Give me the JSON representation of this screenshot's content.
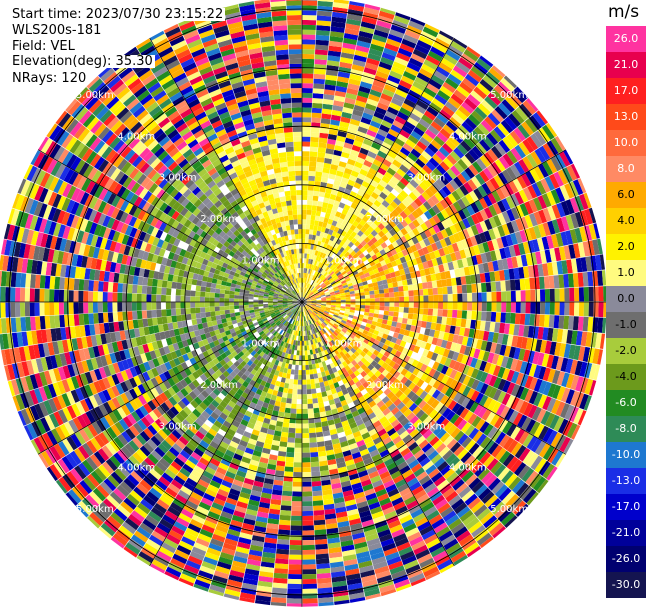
{
  "header": {
    "start_time": "Start time: 2023/07/30 23:15:22",
    "instrument": "WLS200s-181",
    "field": "Field: VEL",
    "elevation": "Elevation(deg): 35.30",
    "nrays": "NRays: 120"
  },
  "colorbar": {
    "unit": "m/s",
    "bins": [
      {
        "label": "26.0",
        "color": "#ff33a0"
      },
      {
        "label": "21.0",
        "color": "#e8004e"
      },
      {
        "label": "17.0",
        "color": "#ff2020"
      },
      {
        "label": "13.0",
        "color": "#ff4a1a"
      },
      {
        "label": "10.0",
        "color": "#ff6a3c"
      },
      {
        "label": "8.0",
        "color": "#ff8a64"
      },
      {
        "label": "6.0",
        "color": "#ffaa00"
      },
      {
        "label": "4.0",
        "color": "#ffd000"
      },
      {
        "label": "2.0",
        "color": "#fff200"
      },
      {
        "label": "1.0",
        "color": "#fffb80"
      },
      {
        "label": "0.0",
        "color": "#8a8a9a"
      },
      {
        "label": "-1.0",
        "color": "#6e6e6e"
      },
      {
        "label": "-2.0",
        "color": "#a8cc3c"
      },
      {
        "label": "-4.0",
        "color": "#6c9a1c"
      },
      {
        "label": "-6.0",
        "color": "#228b22"
      },
      {
        "label": "-8.0",
        "color": "#2e8b57"
      },
      {
        "label": "-10.0",
        "color": "#1e78d0"
      },
      {
        "label": "-13.0",
        "color": "#1a2ee6"
      },
      {
        "label": "-17.0",
        "color": "#0000cc"
      },
      {
        "label": "-21.0",
        "color": "#00009a"
      },
      {
        "label": "-26.0",
        "color": "#000070"
      },
      {
        "label": "-30.0",
        "color": "#141450"
      }
    ]
  },
  "chart_data": {
    "type": "heatmap",
    "projection": "polar PPI",
    "field": "VEL",
    "units": "m/s",
    "n_rays": 120,
    "elevation_deg": 35.3,
    "range_rings_km": [
      {
        "label": "1.00km",
        "r_km": 1.0
      },
      {
        "label": "2.00km",
        "r_km": 2.0
      },
      {
        "label": "3.00km",
        "r_km": 3.0
      },
      {
        "label": "4.00km",
        "r_km": 4.0
      },
      {
        "label": "5.00km",
        "r_km": 5.0
      }
    ],
    "max_range_km": 5.2,
    "value_range": [
      -30.0,
      26.0
    ],
    "spokes_deg": [
      0,
      30,
      60,
      90,
      120,
      150,
      180,
      210,
      240,
      270,
      300,
      330
    ]
  }
}
